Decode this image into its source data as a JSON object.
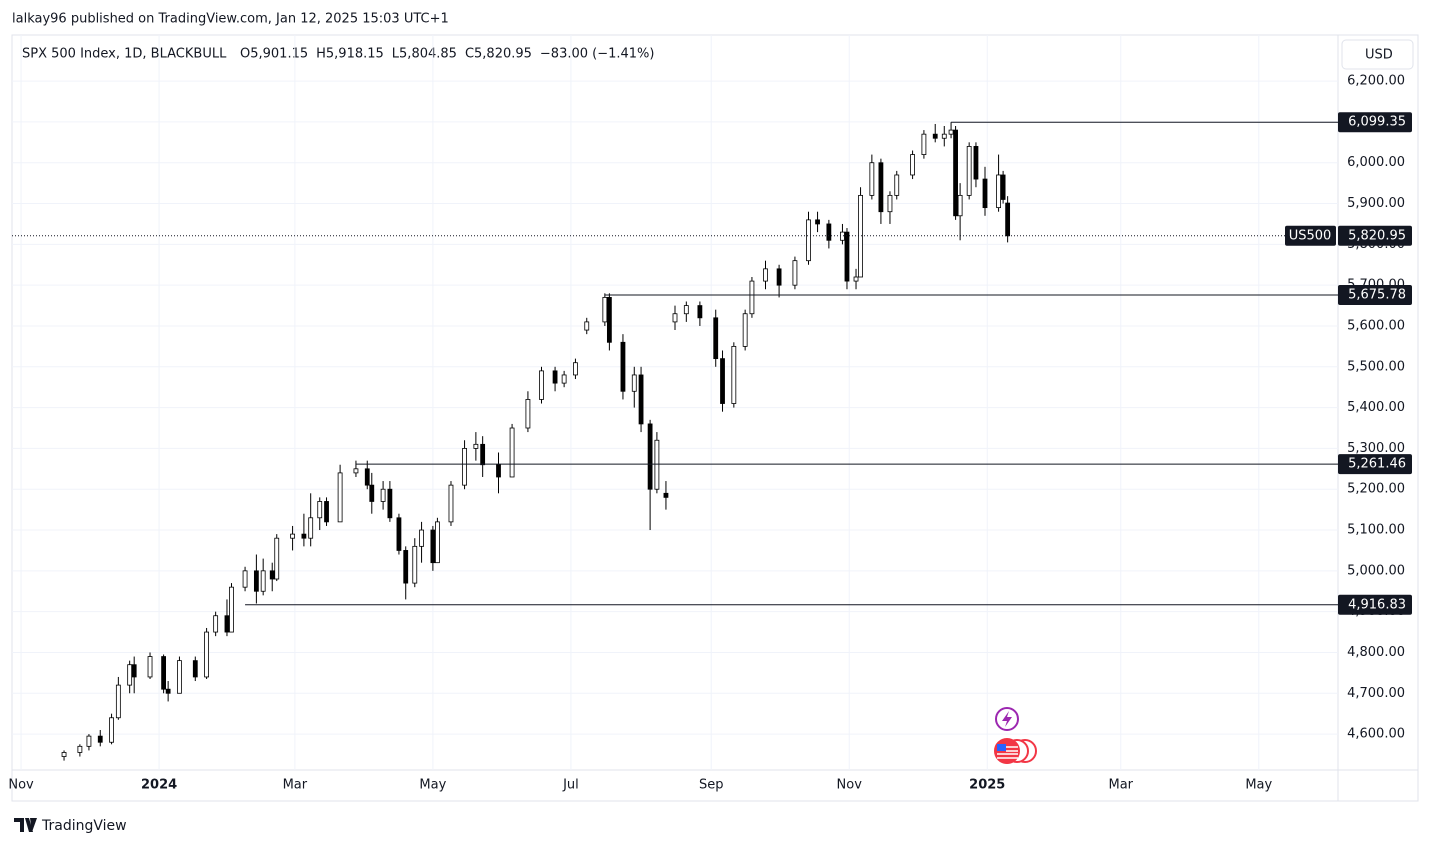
{
  "header": {
    "author_line": "lalkay96 published on TradingView.com, Jan 12, 2025 15:03 UTC+1"
  },
  "chart_data": {
    "type": "candlestick",
    "title": "SPX 500 Index, 1D, BLACKBULL",
    "legend": [
      "O5,901.15",
      "H5,918.15",
      "L5,804.85",
      "C5,820.95",
      "−83.00 (−1.41%)"
    ],
    "currency": "USD",
    "x": [
      "2023-11-20",
      "2023-11-27",
      "2023-12-01",
      "2023-12-06",
      "2023-12-11",
      "2023-12-14",
      "2023-12-19",
      "2023-12-21",
      "2023-12-28",
      "2024-01-03",
      "2024-01-05",
      "2024-01-10",
      "2024-01-17",
      "2024-01-22",
      "2024-01-26",
      "2024-01-31",
      "2024-02-02",
      "2024-02-08",
      "2024-02-13",
      "2024-02-16",
      "2024-02-20",
      "2024-02-22",
      "2024-02-29",
      "2024-03-05",
      "2024-03-08",
      "2024-03-12",
      "2024-03-15",
      "2024-03-21",
      "2024-03-28",
      "2024-04-02",
      "2024-04-04",
      "2024-04-09",
      "2024-04-12",
      "2024-04-16",
      "2024-04-19",
      "2024-04-23",
      "2024-04-26",
      "2024-05-01",
      "2024-05-03",
      "2024-05-09",
      "2024-05-15",
      "2024-05-20",
      "2024-05-23",
      "2024-05-30",
      "2024-06-05",
      "2024-06-12",
      "2024-06-18",
      "2024-06-24",
      "2024-06-28",
      "2024-07-03",
      "2024-07-08",
      "2024-07-16",
      "2024-07-18",
      "2024-07-24",
      "2024-07-29",
      "2024-08-01",
      "2024-08-05",
      "2024-08-08",
      "2024-08-12",
      "2024-08-16",
      "2024-08-21",
      "2024-08-27",
      "2024-09-03",
      "2024-09-06",
      "2024-09-11",
      "2024-09-16",
      "2024-09-19",
      "2024-09-25",
      "2024-10-01",
      "2024-10-08",
      "2024-10-14",
      "2024-10-18",
      "2024-10-23",
      "2024-10-29",
      "2024-10-31",
      "2024-11-04",
      "2024-11-06",
      "2024-11-11",
      "2024-11-15",
      "2024-11-19",
      "2024-11-22",
      "2024-11-29",
      "2024-12-04",
      "2024-12-09",
      "2024-12-13",
      "2024-12-16",
      "2024-12-18",
      "2024-12-20",
      "2024-12-24",
      "2024-12-27",
      "2024-12-31",
      "2025-01-06",
      "2025-01-08",
      "2025-01-10"
    ],
    "open": [
      4545,
      4555,
      4570,
      4595,
      4580,
      4640,
      4720,
      4770,
      4740,
      4790,
      4710,
      4700,
      4780,
      4740,
      4850,
      4890,
      4850,
      4960,
      5000,
      4950,
      5000,
      4980,
      5080,
      5090,
      5080,
      5130,
      5170,
      5120,
      5240,
      5250,
      5210,
      5170,
      5200,
      5130,
      5050,
      4970,
      5060,
      5100,
      5020,
      5120,
      5210,
      5300,
      5310,
      5260,
      5230,
      5350,
      5420,
      5490,
      5460,
      5480,
      5590,
      5610,
      5670,
      5560,
      5440,
      5480,
      5360,
      5200,
      5190,
      5610,
      5630,
      5650,
      5620,
      5520,
      5410,
      5550,
      5630,
      5710,
      5740,
      5700,
      5760,
      5860,
      5850,
      5810,
      5830,
      5710,
      5720,
      5920,
      6000,
      5880,
      5920,
      5970,
      6020,
      6070,
      6060,
      6070,
      6080,
      5870,
      5920,
      6040,
      5960,
      5890,
      5970,
      5901.15
    ],
    "high": [
      4560,
      4575,
      4600,
      4610,
      4650,
      4740,
      4780,
      4790,
      4800,
      4795,
      4730,
      4790,
      4790,
      4860,
      4900,
      4930,
      4970,
      5010,
      5040,
      5030,
      5020,
      5090,
      5110,
      5140,
      5190,
      5180,
      5180,
      5260,
      5270,
      5270,
      5240,
      5220,
      5220,
      5140,
      5060,
      5080,
      5120,
      5110,
      5130,
      5220,
      5320,
      5340,
      5330,
      5290,
      5360,
      5440,
      5500,
      5500,
      5490,
      5520,
      5620,
      5680,
      5680,
      5580,
      5500,
      5500,
      5370,
      5340,
      5220,
      5650,
      5660,
      5660,
      5640,
      5540,
      5560,
      5640,
      5720,
      5760,
      5750,
      5770,
      5880,
      5880,
      5860,
      5850,
      5840,
      5740,
      5940,
      6020,
      6010,
      5930,
      5980,
      6030,
      6080,
      6095,
      6090,
      6099.35,
      6090,
      5950,
      6050,
      6050,
      5990,
      6020,
      5980,
      5918.15
    ],
    "low": [
      4535,
      4545,
      4560,
      4570,
      4575,
      4635,
      4700,
      4700,
      4735,
      4700,
      4680,
      4700,
      4730,
      4735,
      4840,
      4840,
      4850,
      4950,
      4920,
      4940,
      4950,
      4975,
      5050,
      5060,
      5060,
      5100,
      5110,
      5120,
      5230,
      5200,
      5140,
      5150,
      5120,
      5040,
      4930,
      4960,
      5020,
      5000,
      5020,
      5110,
      5200,
      5270,
      5230,
      5190,
      5230,
      5340,
      5410,
      5440,
      5450,
      5470,
      5580,
      5600,
      5540,
      5420,
      5400,
      5340,
      5100,
      5190,
      5150,
      5590,
      5610,
      5600,
      5500,
      5390,
      5400,
      5540,
      5620,
      5690,
      5670,
      5690,
      5750,
      5830,
      5790,
      5800,
      5690,
      5690,
      5720,
      5910,
      5850,
      5850,
      5910,
      5960,
      6010,
      6050,
      6040,
      6060,
      5860,
      5810,
      5910,
      5940,
      5870,
      5880,
      5900,
      5804.85
    ],
    "close": [
      4555,
      4570,
      4595,
      4580,
      4640,
      4720,
      4770,
      4740,
      4790,
      4710,
      4700,
      4780,
      4740,
      4850,
      4890,
      4850,
      4960,
      5000,
      4950,
      5000,
      4980,
      5080,
      5090,
      5080,
      5130,
      5170,
      5120,
      5240,
      5250,
      5210,
      5170,
      5200,
      5130,
      5050,
      4970,
      5060,
      5100,
      5020,
      5120,
      5210,
      5300,
      5310,
      5260,
      5230,
      5350,
      5420,
      5490,
      5460,
      5480,
      5510,
      5610,
      5670,
      5560,
      5440,
      5480,
      5360,
      5200,
      5320,
      5180,
      5630,
      5650,
      5620,
      5520,
      5410,
      5550,
      5630,
      5710,
      5740,
      5700,
      5760,
      5860,
      5850,
      5810,
      5830,
      5710,
      5720,
      5920,
      6000,
      5880,
      5920,
      5970,
      6020,
      6070,
      6060,
      6070,
      6080,
      5870,
      5920,
      6040,
      5960,
      5890,
      5970,
      5910,
      5820.95
    ],
    "up_color": "#ffffff",
    "down_color": "#000000",
    "edge_color": "#000000",
    "xlim": [
      "2023-10-28",
      "2025-06-05"
    ],
    "xticks": [
      {
        "value": "2023-11-01",
        "label": "Nov"
      },
      {
        "value": "2024-01-01",
        "label": "2024"
      },
      {
        "value": "2024-03-01",
        "label": "Mar"
      },
      {
        "value": "2024-05-01",
        "label": "May"
      },
      {
        "value": "2024-07-01",
        "label": "Jul"
      },
      {
        "value": "2024-09-01",
        "label": "Sep"
      },
      {
        "value": "2024-11-01",
        "label": "Nov"
      },
      {
        "value": "2025-01-01",
        "label": "2025"
      },
      {
        "value": "2025-03-01",
        "label": "Mar"
      },
      {
        "value": "2025-05-01",
        "label": "May"
      }
    ],
    "ylim": [
      4512,
      6313
    ],
    "yticks": [
      {
        "value": 4600,
        "label": "4,600.00"
      },
      {
        "value": 4700,
        "label": "4,700.00"
      },
      {
        "value": 4800,
        "label": "4,800.00"
      },
      {
        "value": 4900,
        "label": "4,900.00"
      },
      {
        "value": 5000,
        "label": "5,000.00"
      },
      {
        "value": 5100,
        "label": "5,100.00"
      },
      {
        "value": 5200,
        "label": "5,200.00"
      },
      {
        "value": 5300,
        "label": "5,300.00"
      },
      {
        "value": 5400,
        "label": "5,400.00"
      },
      {
        "value": 5500,
        "label": "5,500.00"
      },
      {
        "value": 5600,
        "label": "5,600.00"
      },
      {
        "value": 5700,
        "label": "5,700.00"
      },
      {
        "value": 5800,
        "label": "5,800.00"
      },
      {
        "value": 5900,
        "label": "5,900.00"
      },
      {
        "value": 6000,
        "label": "6,000.00"
      },
      {
        "value": 6100,
        "label": "6,100.00"
      },
      {
        "value": 6200,
        "label": "6,200.00"
      }
    ],
    "grid": true,
    "levels": [
      {
        "value": 6099.35,
        "label": "6,099.35",
        "start": "2024-12-16"
      },
      {
        "value": 5675.78,
        "label": "5,675.78",
        "start": "2024-07-16"
      },
      {
        "value": 5261.46,
        "label": "5,261.46",
        "start": "2024-03-28"
      },
      {
        "value": 4916.83,
        "label": "4,916.83",
        "start": "2024-02-08"
      }
    ],
    "last_price": {
      "value": 5820.95,
      "label": "5,820.95",
      "tag": "US500"
    }
  },
  "footer": {
    "brand": "TradingView"
  }
}
